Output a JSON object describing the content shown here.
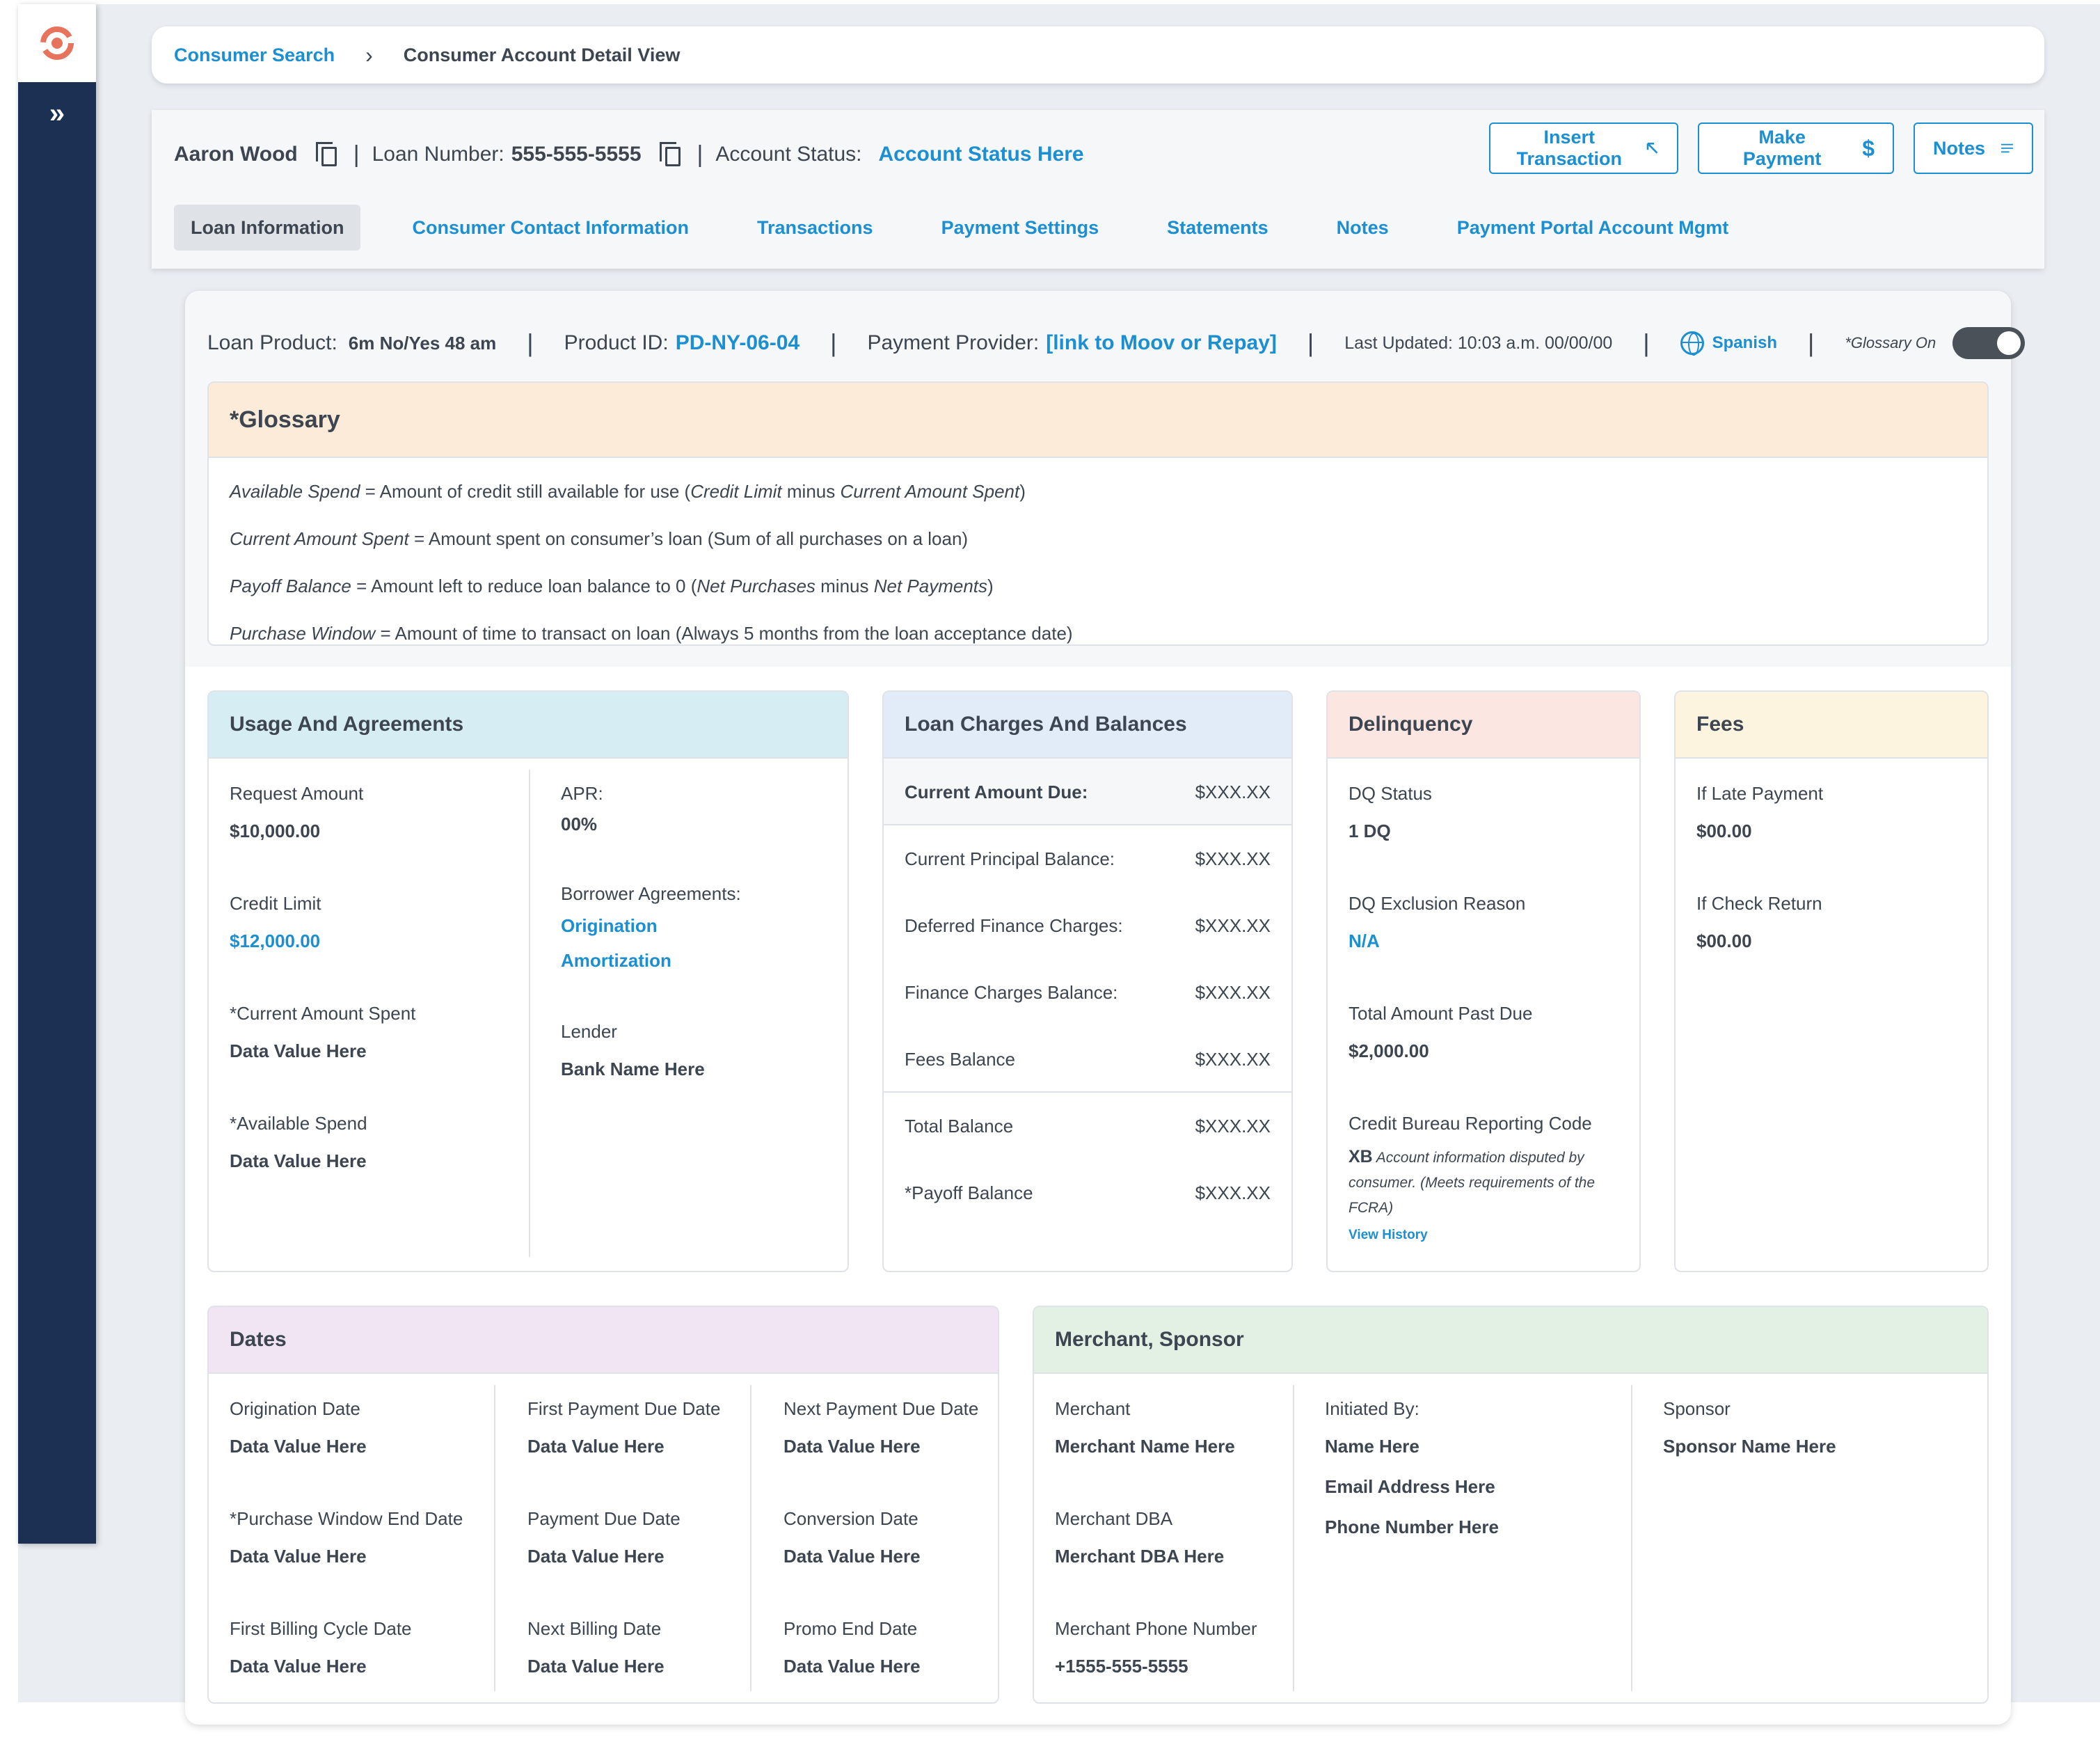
{
  "sidebar": {
    "expand_label": "»"
  },
  "breadcrumb": {
    "link": "Consumer Search",
    "separator": "›",
    "current": "Consumer Account Detail View"
  },
  "header": {
    "name": "Aaron Wood",
    "loan_number_label": "Loan Number:",
    "loan_number": "555-555-5555",
    "account_status_label": "Account Status:",
    "account_status": "Account Status Here",
    "buttons": {
      "insert": "Insert Transaction",
      "payment": "Make Payment",
      "notes": "Notes"
    },
    "tabs": [
      "Loan Information",
      "Consumer Contact Information",
      "Transactions",
      "Payment Settings",
      "Statements",
      "Notes",
      "Payment Portal Account Mgmt"
    ]
  },
  "meta": {
    "loan_product_label": "Loan Product:",
    "loan_product": "6m No/Yes 48 am",
    "product_id_label": "Product ID:",
    "product_id": "PD-NY-06-04",
    "provider_label": "Payment Provider:",
    "provider": "[link to Moov or Repay]",
    "last_updated": "Last Updated: 10:03 a.m. 00/00/00",
    "language": "Spanish",
    "glossary_toggle_label": "*Glossary On"
  },
  "glossary": {
    "title": "*Glossary",
    "lines": [
      {
        "term": "Available Spend",
        "def1": " = Amount of credit still available for use (",
        "t2": "Credit Limit",
        "mid": " minus ",
        "t3": "Current Amount Spent",
        "end": ")"
      },
      {
        "term": "Current Amount Spent",
        "def1": " = Amount spent on consumer’s loan (Sum of all purchases on a loan)",
        "t2": "",
        "mid": "",
        "t3": "",
        "end": ""
      },
      {
        "term": "Payoff Balance",
        "def1": " = Amount left to reduce loan balance to 0 (",
        "t2": "Net Purchases",
        "mid": " minus ",
        "t3": "Net Payments",
        "end": ")"
      },
      {
        "term": "Purchase Window",
        "def1": " = Amount of time to transact on loan (Always 5 months from the loan acceptance date)",
        "t2": "",
        "mid": "",
        "t3": "",
        "end": ""
      }
    ]
  },
  "usage": {
    "title": "Usage And Agreements",
    "request_label": "Request Amount",
    "request": "$10,000.00",
    "credit_label": "Credit Limit",
    "credit": "$12,000.00",
    "spent_label": "*Current Amount Spent",
    "spent": "Data Value Here",
    "avail_label": "*Available Spend",
    "avail": "Data Value Here",
    "apr_label": "APR:",
    "apr": "00%",
    "agreements_label": "Borrower Agreements:",
    "agreement1": "Origination",
    "agreement2": "Amortization",
    "lender_label": "Lender",
    "lender": "Bank Name Here"
  },
  "charges": {
    "title": "Loan Charges And Balances",
    "rows": [
      {
        "label": "Current Amount Due:",
        "value": "$XXX.XX"
      },
      {
        "label": "Current Principal Balance:",
        "value": "$XXX.XX"
      },
      {
        "label": "Deferred Finance Charges:",
        "value": "$XXX.XX"
      },
      {
        "label": "Finance Charges Balance:",
        "value": "$XXX.XX"
      },
      {
        "label": "Fees Balance",
        "value": "$XXX.XX"
      },
      {
        "label": "Total Balance",
        "value": "$XXX.XX"
      },
      {
        "label": "*Payoff Balance",
        "value": "$XXX.XX"
      }
    ]
  },
  "delinquency": {
    "title": "Delinquency",
    "dq_status_label": "DQ Status",
    "dq_status": "1 DQ",
    "exclusion_label": "DQ Exclusion Reason",
    "exclusion": "N/A",
    "past_due_label": "Total Amount Past Due",
    "past_due": "$2,000.00",
    "bureau_label": "Credit Bureau Reporting Code",
    "bureau_code": "XB",
    "bureau_note": "Account information disputed by consumer. (Meets requirements of the FCRA)",
    "view_history": "View History"
  },
  "fees": {
    "title": "Fees",
    "late_label": "If Late Payment",
    "late": "$00.00",
    "check_label": "If Check Return",
    "check": "$00.00"
  },
  "dates": {
    "title": "Dates",
    "items": [
      {
        "label": "Origination Date",
        "value": "Data Value Here"
      },
      {
        "label": "First Payment Due Date",
        "value": "Data Value Here"
      },
      {
        "label": "Next Payment Due Date",
        "value": "Data Value Here"
      },
      {
        "label": "*Purchase Window End Date",
        "value": "Data Value Here"
      },
      {
        "label": "Payment Due Date",
        "value": "Data Value Here"
      },
      {
        "label": "Conversion Date",
        "value": "Data Value Here"
      },
      {
        "label": "First Billing Cycle Date",
        "value": "Data Value Here"
      },
      {
        "label": "Next Billing Date",
        "value": "Data Value Here"
      },
      {
        "label": "Promo End Date",
        "value": "Data Value Here"
      }
    ]
  },
  "merchant": {
    "title": "Merchant, Sponsor",
    "merchant_label": "Merchant",
    "merchant": "Merchant Name Here",
    "dba_label": "Merchant DBA",
    "dba": "Merchant DBA Here",
    "phone_label": "Merchant Phone Number",
    "phone": "+1555-555-5555",
    "initiated_label": "Initiated By:",
    "initiated_name": "Name Here",
    "initiated_email": "Email Address Here",
    "initiated_phone": "Phone Number Here",
    "sponsor_label": "Sponsor",
    "sponsor": "Sponsor Name Here"
  },
  "colors": {
    "sidebar": "#1c3054",
    "accent": "#1b8fd2",
    "glossary_head": "#fdebd9",
    "usage_head": "#d6eef3",
    "charges_head": "#e2ecf8",
    "delinquency_head": "#fce6e1",
    "fees_head": "#fdf4e0",
    "dates_head": "#f1e4f3",
    "merchant_head": "#e3f0e4"
  }
}
